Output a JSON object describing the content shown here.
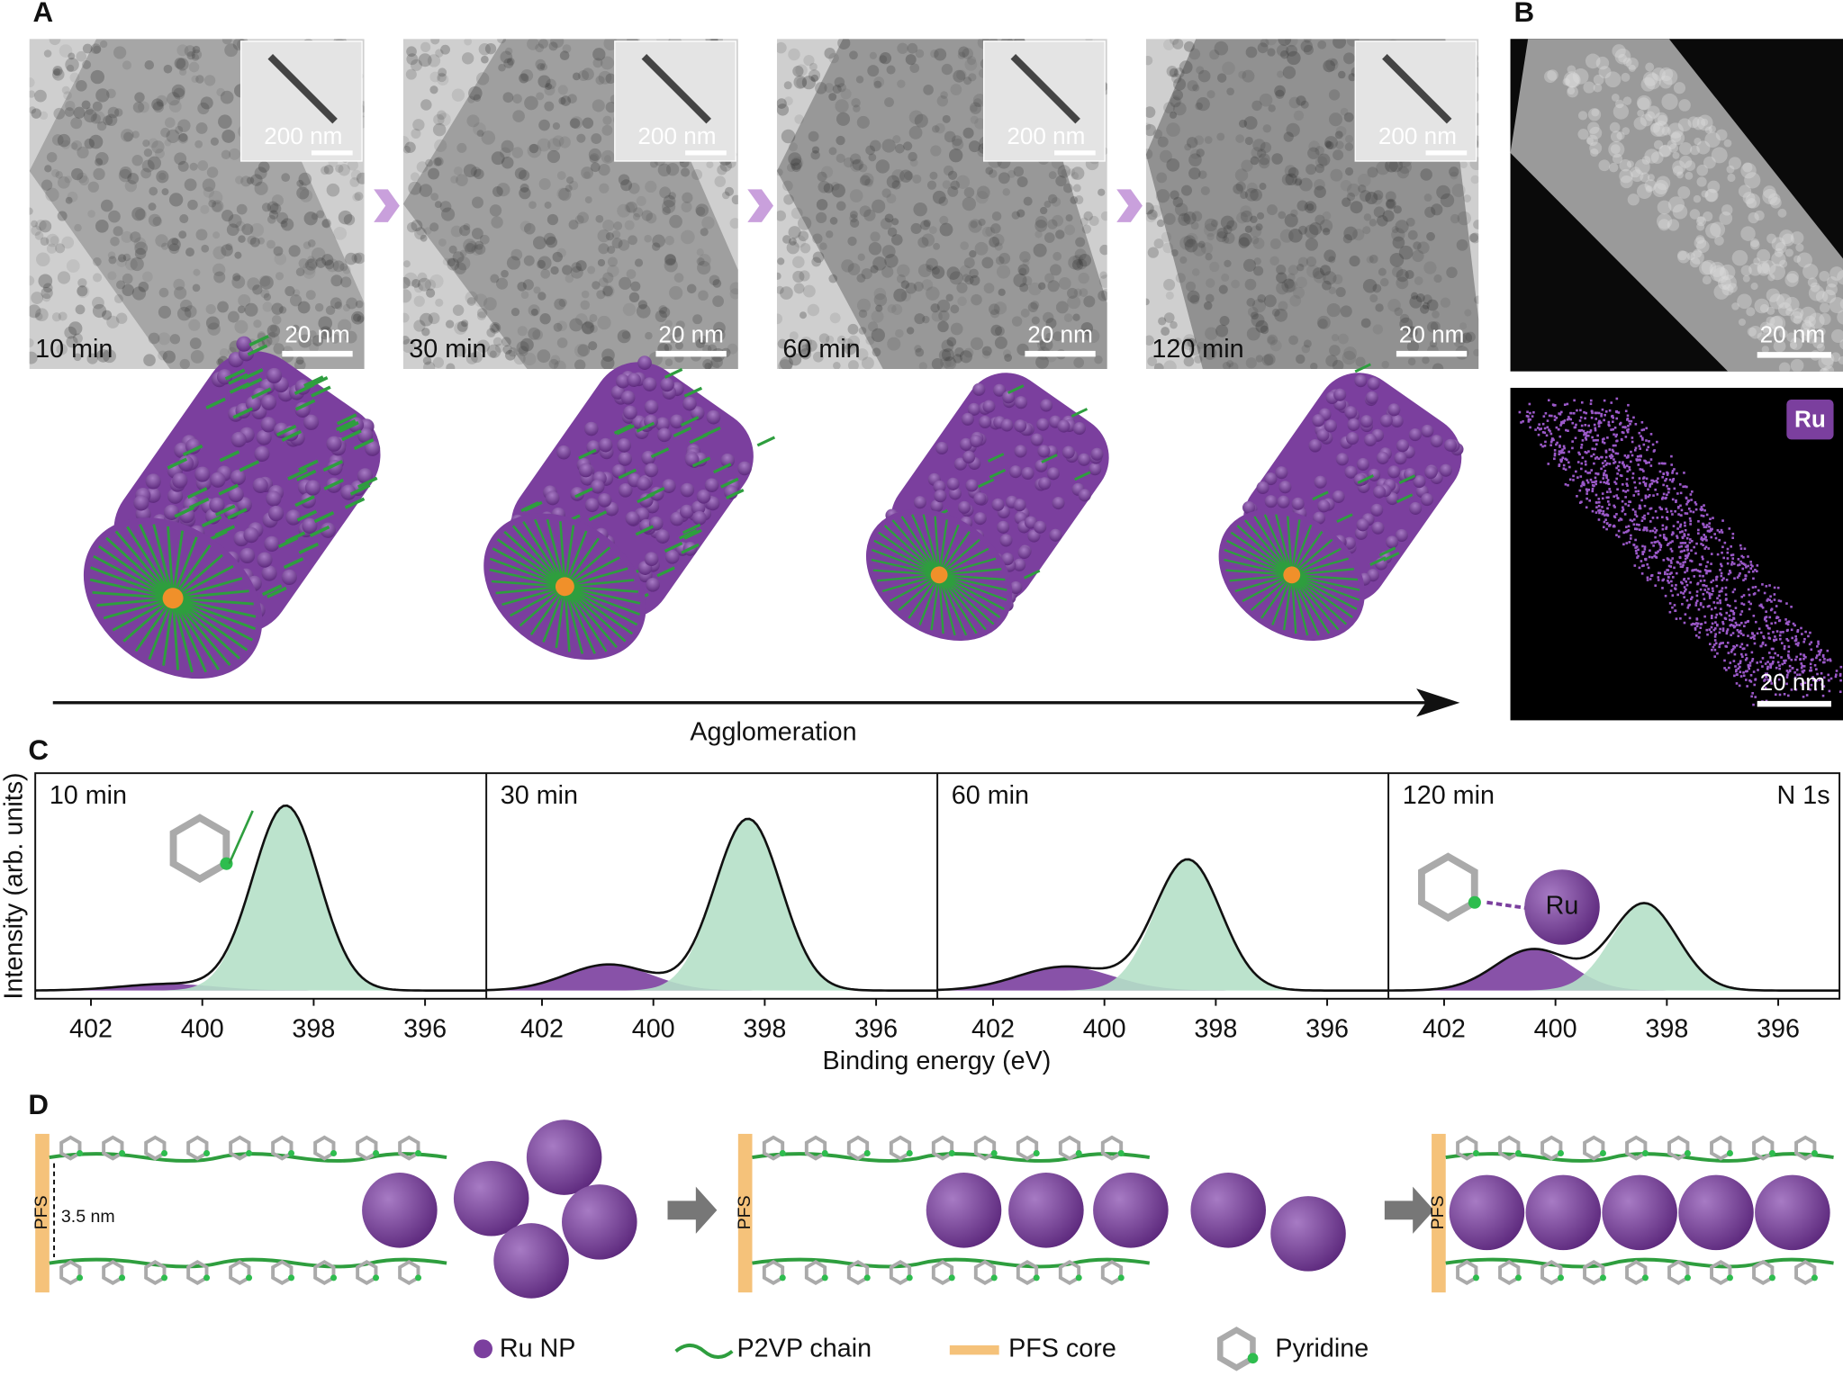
{
  "panel_labels": [
    "A",
    "B",
    "C",
    "D"
  ],
  "panel_a": {
    "times": [
      "10 min",
      "30 min",
      "60 min",
      "120 min"
    ],
    "scale_bar": "20 nm",
    "inset_scale_bar": "200 nm",
    "arrow_label": "Agglomeration"
  },
  "panel_b": {
    "scale_bar": "20 nm",
    "element": "Ru"
  },
  "panel_c": {
    "type": "line",
    "y_label": "Intensity (arb. units)",
    "x_label": "Binding energy (eV)",
    "annotation": "N 1s",
    "inset_label": "Ru",
    "xlim": [
      403,
      394.9
    ],
    "xticks": [
      402,
      400,
      398,
      396
    ],
    "ylim": [
      0,
      1
    ],
    "panels": [
      {
        "title": "10 min",
        "peaks": [
          {
            "color": "#7b3f9e",
            "center": 400.6,
            "height": 0.03,
            "fwhm": 2.0
          },
          {
            "color": "#b5e0c8",
            "center": 398.5,
            "height": 0.85,
            "fwhm": 1.4
          }
        ]
      },
      {
        "title": "30 min",
        "peaks": [
          {
            "color": "#7b3f9e",
            "center": 400.8,
            "height": 0.12,
            "fwhm": 1.8
          },
          {
            "color": "#b5e0c8",
            "center": 398.3,
            "height": 0.79,
            "fwhm": 1.4
          }
        ]
      },
      {
        "title": "60 min",
        "peaks": [
          {
            "color": "#7b3f9e",
            "center": 400.7,
            "height": 0.11,
            "fwhm": 2.0
          },
          {
            "color": "#b5e0c8",
            "center": 398.5,
            "height": 0.6,
            "fwhm": 1.4
          }
        ]
      },
      {
        "title": "120 min",
        "peaks": [
          {
            "color": "#7b3f9e",
            "center": 400.4,
            "height": 0.19,
            "fwhm": 1.6
          },
          {
            "color": "#b5e0c8",
            "center": 398.4,
            "height": 0.4,
            "fwhm": 1.4
          }
        ]
      }
    ]
  },
  "panel_d": {
    "pfs_label": "PFS",
    "distance": "3.5 nm",
    "legend": [
      "Ru NP",
      "P2VP chain",
      "PFS core",
      "Pyridine"
    ]
  }
}
